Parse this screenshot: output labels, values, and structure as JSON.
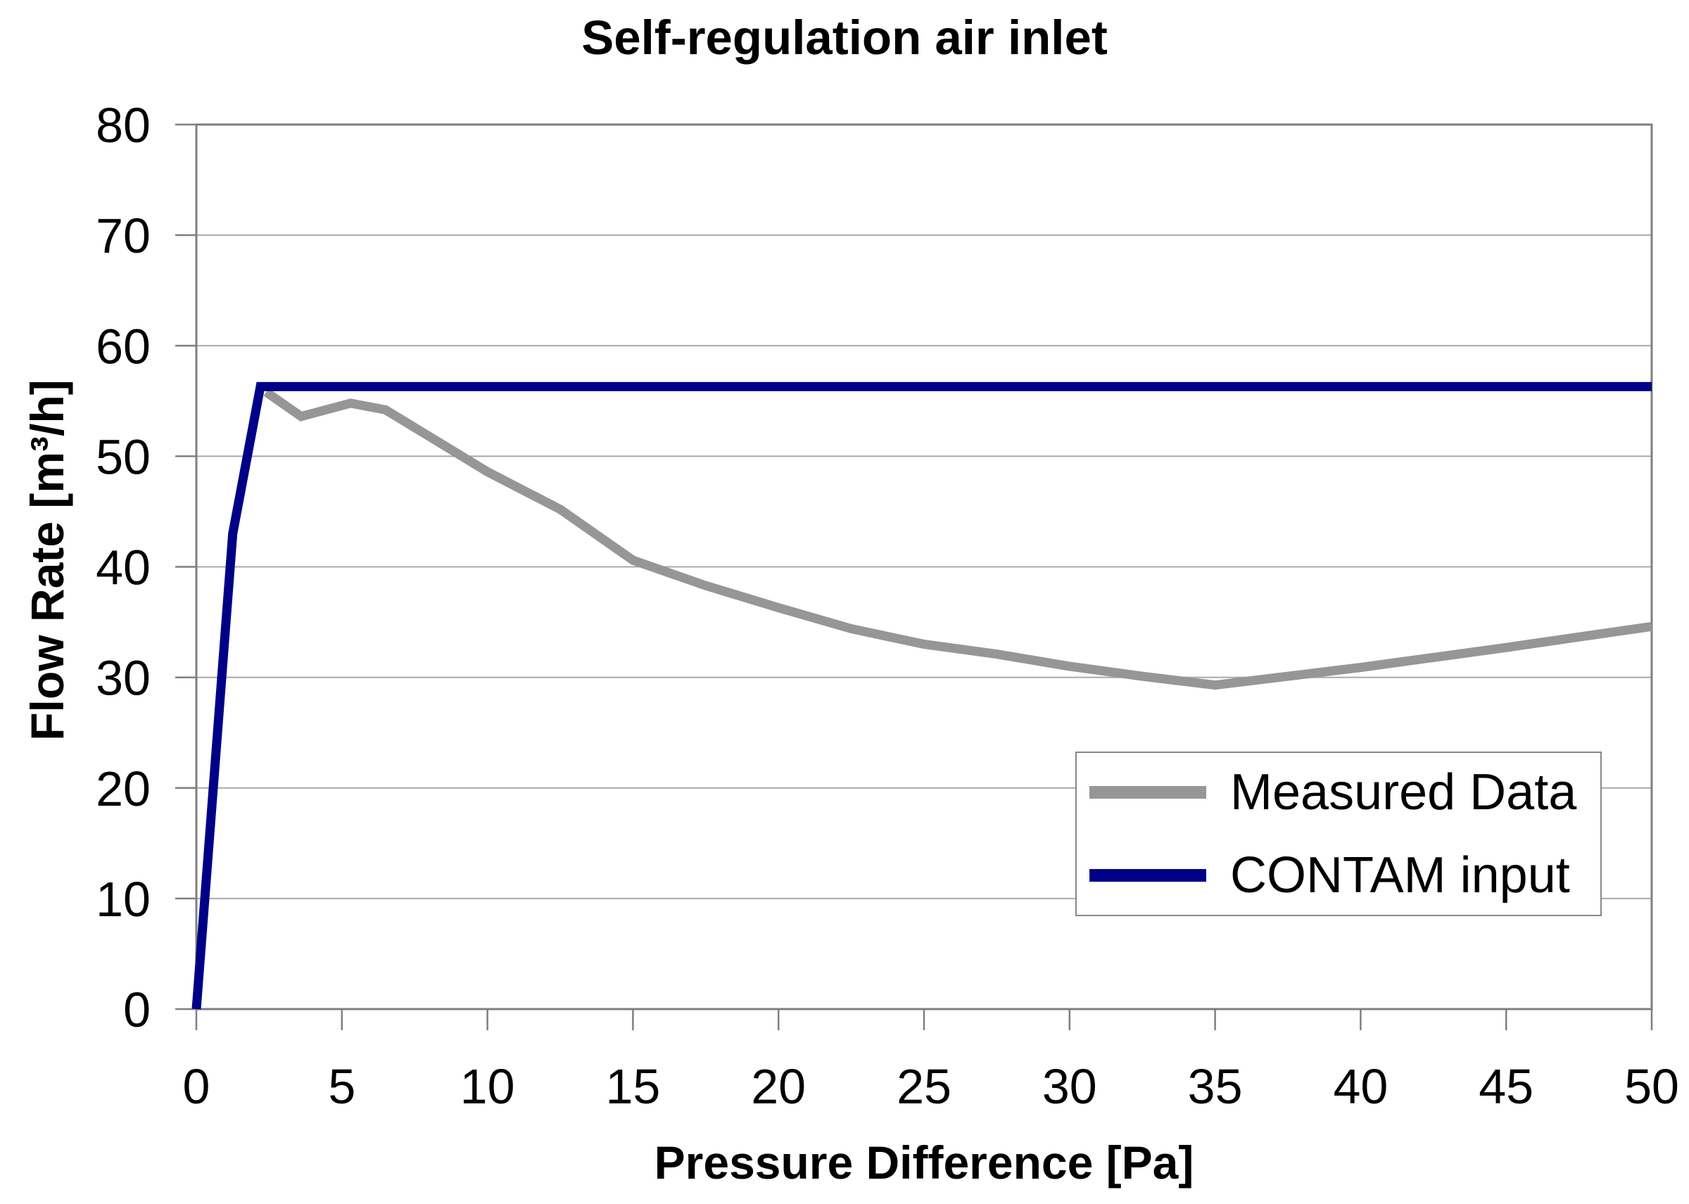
{
  "title": "Self-regulation air inlet",
  "colors": {
    "measured_line": "#969696",
    "contam_line": "#000087",
    "gridline": "#a9a9a9",
    "axis": "#7f7f7f",
    "text": "#000000",
    "background": "#ffffff"
  },
  "chart_data": {
    "type": "line",
    "title": "Self-regulation air inlet",
    "xlabel": "Pressure Difference [Pa]",
    "ylabel": "Flow Rate [m³/h]",
    "xlim": [
      0,
      50
    ],
    "ylim": [
      0,
      80
    ],
    "x_ticks": [
      0,
      5,
      10,
      15,
      20,
      25,
      30,
      35,
      40,
      45,
      50
    ],
    "y_ticks": [
      0,
      10,
      20,
      30,
      40,
      50,
      60,
      70,
      80
    ],
    "grid": "horizontal gridlines every 10 units, plot area framed",
    "legend_position": "inside lower right",
    "series": [
      {
        "name": "Measured Data",
        "color": "#969696",
        "points": [
          [
            2.4,
            55.8
          ],
          [
            3.6,
            53.6
          ],
          [
            5.3,
            54.8
          ],
          [
            6.5,
            54.2
          ],
          [
            10,
            48.6
          ],
          [
            12.5,
            45.2
          ],
          [
            15,
            40.6
          ],
          [
            17.5,
            38.3
          ],
          [
            20,
            36.3
          ],
          [
            22.5,
            34.4
          ],
          [
            25,
            33.0
          ],
          [
            27.5,
            32.1
          ],
          [
            30,
            31.0
          ],
          [
            32.5,
            30.1
          ],
          [
            35,
            29.3
          ],
          [
            40,
            30.9
          ],
          [
            45,
            32.7
          ],
          [
            50,
            34.6
          ]
        ]
      },
      {
        "name": "CONTAM input",
        "color": "#000087",
        "points": [
          [
            0,
            0
          ],
          [
            1.25,
            43.0
          ],
          [
            2.2,
            56.3
          ],
          [
            50,
            56.3
          ]
        ]
      }
    ]
  }
}
